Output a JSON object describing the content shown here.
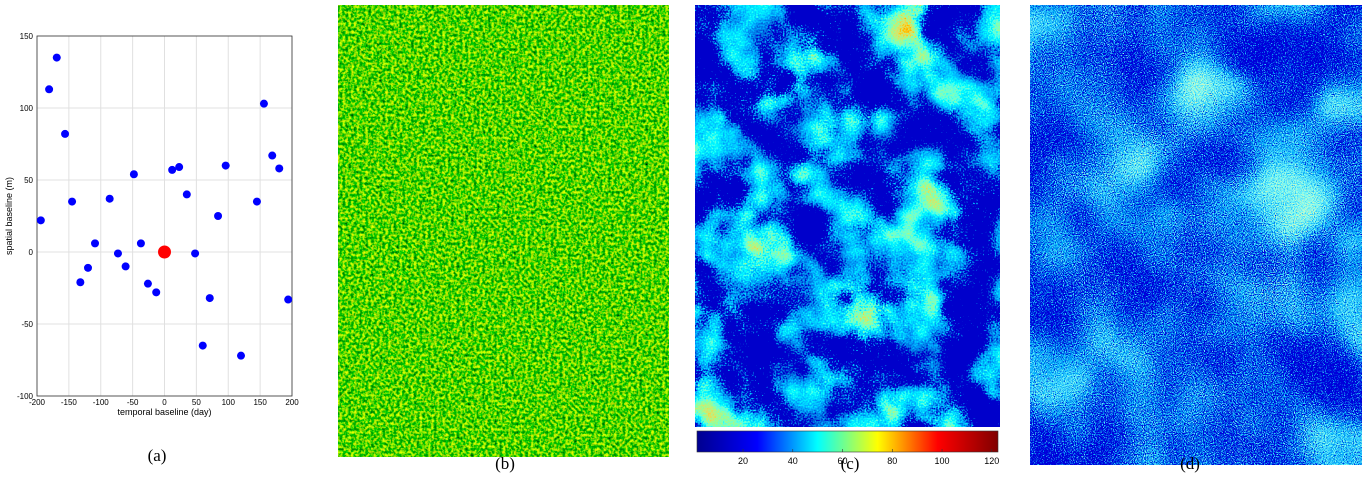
{
  "chart_data": [
    {
      "type": "scatter",
      "xlabel": "temporal baseline (day)",
      "ylabel": "spatial baseline (m)",
      "xlim": [
        -200,
        200
      ],
      "ylim": [
        -100,
        150
      ],
      "xticks": [
        -200,
        -150,
        -100,
        -50,
        0,
        50,
        100,
        150,
        200
      ],
      "yticks": [
        -100,
        -50,
        0,
        50,
        100,
        150
      ],
      "grid": true,
      "series": [
        {
          "color": "#0000ff",
          "x": [
            -194,
            -181,
            -169,
            -156,
            -145,
            -132,
            -120,
            -109,
            -86,
            -73,
            -61,
            -48,
            -37,
            -26,
            -13,
            12,
            23,
            35,
            48,
            60,
            71,
            84,
            96,
            120,
            145,
            156,
            169,
            180,
            194
          ],
          "values": [
            22,
            113,
            135,
            82,
            35,
            -21,
            -11,
            6,
            37,
            -1,
            -10,
            54,
            6,
            -22,
            -28,
            57,
            59,
            40,
            -1,
            -65,
            -32,
            25,
            60,
            -72,
            35,
            103,
            67,
            58,
            -33
          ]
        },
        {
          "color": "#ff0000",
          "x": [
            0
          ],
          "values": [
            0
          ]
        }
      ]
    },
    {
      "type": "colorbar",
      "xlim": [
        1.5,
        122.5
      ],
      "xticks": [
        20,
        40,
        60,
        80,
        100,
        120
      ],
      "colors": [
        "#00008f",
        "#0000ff",
        "#00ffff",
        "#ffff00",
        "#ff0000",
        "#800000"
      ]
    }
  ],
  "captions": [
    "(a)",
    "(b)",
    "(c)",
    "(d)"
  ]
}
